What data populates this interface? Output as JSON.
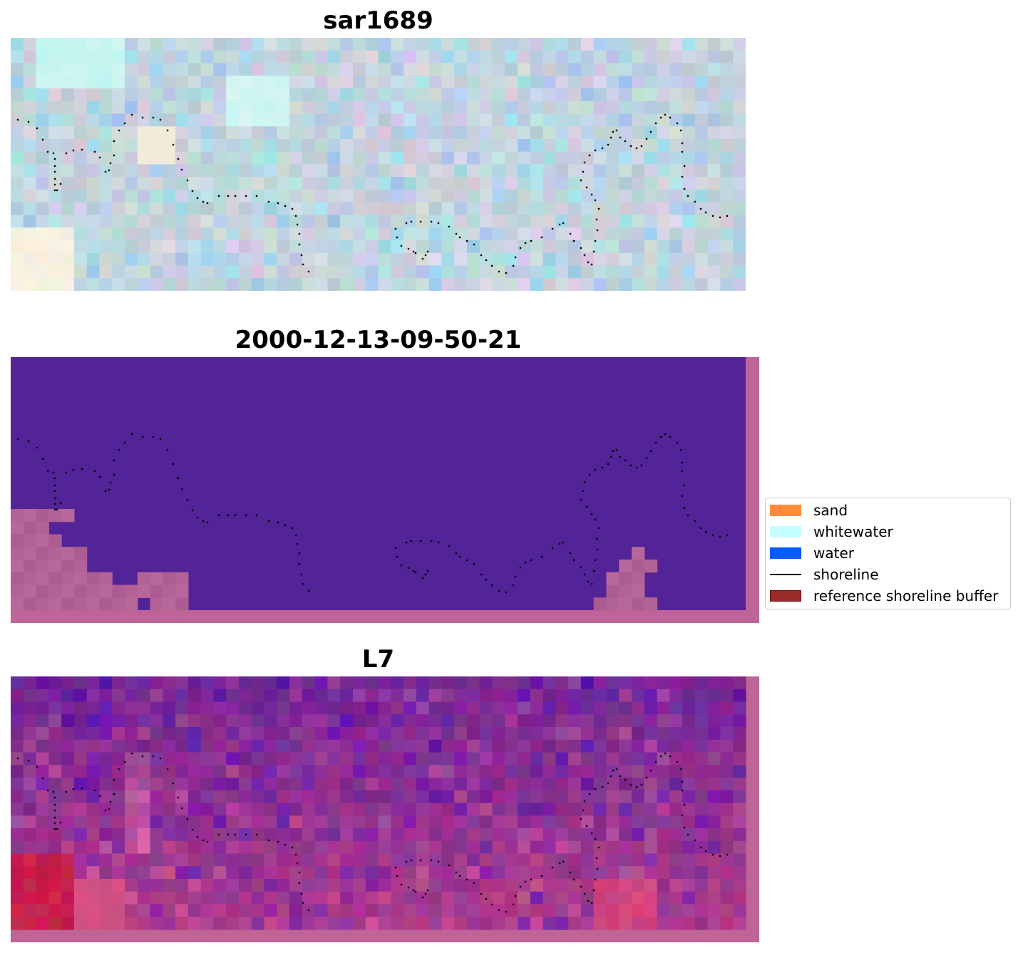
{
  "panels": {
    "top": {
      "title": "sar1689"
    },
    "middle": {
      "title": "2000-12-13-09-50-21"
    },
    "bottom": {
      "title": "L7"
    }
  },
  "legend": {
    "items": [
      {
        "label": "sand",
        "color": "#ff8c3a",
        "kind": "patch"
      },
      {
        "label": "whitewater",
        "color": "#c6ffff",
        "kind": "patch"
      },
      {
        "label": "water",
        "color": "#0a5cff",
        "kind": "patch"
      },
      {
        "label": "shoreline",
        "color": "#000000",
        "kind": "line"
      },
      {
        "label": "reference shoreline buffer",
        "color": "#9a2a2a",
        "kind": "patch"
      }
    ]
  },
  "colors": {
    "middle_background": "#532398",
    "buffer_overlay": "#be6496",
    "sar_base": "#c6d6dc",
    "l7_base": "#8a2f9a"
  }
}
